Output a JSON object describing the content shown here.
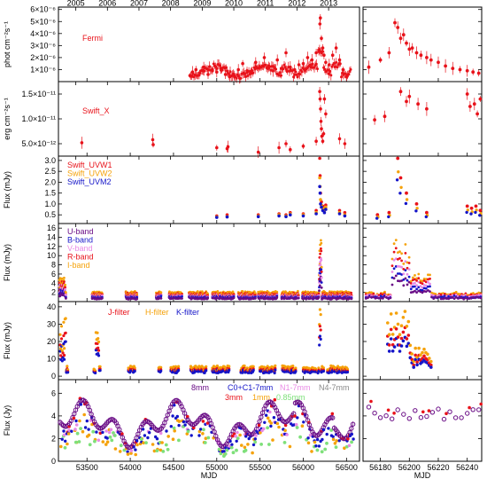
{
  "colors": {
    "red": "#e8121a",
    "orange": "#f5a20a",
    "blue": "#1414c8",
    "pink": "#e98ae6",
    "purple": "#6a0d86",
    "magenta": "#b0107a",
    "gray": "#8a8a8a",
    "green": "#7ee07a"
  },
  "top_axis": {
    "years": [
      "2005",
      "2006",
      "2007",
      "2008",
      "2009",
      "2010",
      "2011",
      "2012",
      "2013"
    ],
    "year_mjd": [
      53371,
      53736,
      54101,
      54466,
      54832,
      55197,
      55562,
      55927,
      56293
    ]
  },
  "bottom_axis": {
    "left_xlabel": "MJD",
    "right_xlabel": "MJD",
    "left_ticks": [
      "53500",
      "54000",
      "54500",
      "55000",
      "55500",
      "56000",
      "56500"
    ],
    "left_tick_values": [
      53500,
      54000,
      54500,
      55000,
      55500,
      56000,
      56500
    ],
    "right_ticks": [
      "56180",
      "56200",
      "56220",
      "56240"
    ],
    "right_tick_values": [
      56180,
      56200,
      56220,
      56240
    ],
    "left_xlim": [
      53170,
      56650
    ],
    "right_xlim": [
      56168,
      56250
    ]
  },
  "chart_data": [
    {
      "type": "scatter",
      "panel": "fermi",
      "ylabel": "phot cm⁻²s⁻¹",
      "yticks": [
        "1×10⁻⁶",
        "2×10⁻⁶",
        "3×10⁻⁶",
        "4×10⁻⁶",
        "5×10⁻⁶",
        "6×10⁻⁶"
      ],
      "ytick_values": [
        1e-06,
        2e-06,
        3e-06,
        4e-06,
        5e-06,
        6e-06
      ],
      "ylim": [
        0,
        6.2e-06
      ],
      "series": [
        {
          "name": "Fermi",
          "color": "red",
          "error_bars": true,
          "x": [
            54690,
            54720,
            54760,
            54800,
            54850,
            54900,
            54950,
            55000,
            55050,
            55100,
            55150,
            55200,
            55250,
            55300,
            55350,
            55400,
            55450,
            55500,
            55550,
            55600,
            55650,
            55700,
            55750,
            55800,
            55850,
            55900,
            55950,
            56000,
            56050,
            56100,
            56150,
            56180,
            56192,
            56198,
            56210,
            56225,
            56240,
            56260,
            56300,
            56340,
            56380,
            56420,
            56460,
            56500
          ],
          "y": [
            5e-07,
            8e-07,
            1e-06,
            7e-07,
            1.2e-06,
            6e-07,
            9e-07,
            8e-07,
            1.1e-06,
            6e-07,
            4e-07,
            5e-07,
            1e-06,
            1.5e-06,
            9e-07,
            7e-07,
            1.6e-06,
            1.2e-06,
            2e-06,
            1.3e-06,
            9e-07,
            1.8e-06,
            1.1e-06,
            2.4e-06,
            1.2e-06,
            1e-06,
            1.4e-06,
            1.5e-06,
            2e-06,
            1.8e-06,
            2.4e-06,
            2.5e-06,
            4.8e-06,
            5.3e-06,
            3.6e-06,
            2.8e-06,
            2.2e-06,
            1.6e-06,
            1.4e-06,
            2.2e-06,
            2.8e-06,
            1.8e-06,
            1e-06,
            4e-07
          ]
        }
      ],
      "zoom": {
        "x": [
          56172,
          56180,
          56186,
          56190,
          56192,
          56194,
          56196,
          56198,
          56200,
          56202,
          56205,
          56208,
          56212,
          56215,
          56220,
          56225,
          56230,
          56235,
          56240,
          56244,
          56248
        ],
        "y": [
          1.2e-06,
          1.8e-06,
          2.4e-06,
          4.9e-06,
          4.5e-06,
          3.6e-06,
          3.9e-06,
          3.2e-06,
          2.7e-06,
          2.8e-06,
          2.4e-06,
          2.2e-06,
          2e-06,
          1.8e-06,
          1.6e-06,
          1.3e-06,
          1.1e-06,
          1e-06,
          9e-07,
          8e-07,
          7e-07
        ]
      }
    },
    {
      "type": "scatter",
      "panel": "swift_x",
      "ylabel": "erg cm⁻²s⁻¹",
      "yticks": [
        "5.0×10⁻¹²",
        "1.0×10⁻¹¹",
        "1.5×10⁻¹¹"
      ],
      "ytick_values": [
        5e-12,
        1e-11,
        1.5e-11
      ],
      "ylim": [
        2.5e-12,
        1.75e-11
      ],
      "series": [
        {
          "name": "Swift_X",
          "color": "red",
          "error_bars": true,
          "x": [
            53440,
            54260,
            54265,
            55000,
            55120,
            55130,
            55480,
            55720,
            55800,
            55850,
            56000,
            56150,
            56190,
            56195,
            56200,
            56205,
            56210,
            56215,
            56225,
            56235,
            56245,
            56260,
            56420,
            56480
          ],
          "y": [
            5.2e-12,
            5.8e-12,
            4.8e-12,
            4.2e-12,
            4e-12,
            4.4e-12,
            3.3e-12,
            4.2e-12,
            5e-12,
            3.8e-12,
            4.5e-12,
            5.5e-12,
            1.55e-11,
            1.4e-11,
            1.2e-11,
            9.5e-12,
            8e-12,
            6.5e-12,
            5.5e-12,
            7e-12,
            1.4e-11,
            1.1e-11,
            6e-12,
            5e-12
          ]
        }
      ],
      "zoom": {
        "x": [
          56176,
          56183,
          56194,
          56198,
          56200,
          56206,
          56212,
          56240,
          56242,
          56245,
          56247,
          56249
        ],
        "y": [
          9.8e-12,
          1.05e-11,
          1.55e-11,
          1.35e-11,
          1.45e-11,
          1.3e-11,
          1.2e-11,
          1.5e-11,
          1.25e-11,
          1.3e-11,
          1.1e-11,
          1.4e-11
        ]
      }
    },
    {
      "type": "scatter",
      "panel": "swift_uv",
      "ylabel": "Flux (mJy)",
      "yticks": [
        "0.5",
        "1.0",
        "1.5",
        "2.0",
        "2.5",
        "3.0"
      ],
      "ytick_values": [
        0.5,
        1.0,
        1.5,
        2.0,
        2.5,
        3.0
      ],
      "ylim": [
        0.1,
        3.2
      ],
      "series": [
        {
          "name": "Swift_UVW1",
          "color": "red",
          "x": [
            55000,
            55120,
            55480,
            55720,
            55800,
            55850,
            56000,
            56150,
            56190,
            56195,
            56200,
            56210,
            56225,
            56245,
            56260,
            56420,
            56480
          ],
          "y": [
            0.45,
            0.5,
            0.5,
            0.55,
            0.5,
            0.6,
            0.55,
            0.7,
            3.1,
            2.3,
            1.5,
            1.1,
            0.9,
            0.8,
            0.95,
            0.7,
            0.6
          ]
        },
        {
          "name": "Swift_UVW2",
          "color": "orange",
          "x": [
            55000,
            55120,
            55480,
            55720,
            55800,
            55850,
            56000,
            56150,
            56190,
            56195,
            56200,
            56210,
            56225,
            56245,
            56260,
            56420,
            56480
          ],
          "y": [
            0.4,
            0.42,
            0.45,
            0.5,
            0.45,
            0.55,
            0.5,
            0.6,
            2.2,
            1.8,
            1.2,
            0.95,
            0.8,
            0.7,
            0.85,
            0.6,
            0.5
          ]
        },
        {
          "name": "Swift_UVM2",
          "color": "blue",
          "x": [
            55000,
            55120,
            55480,
            55720,
            55800,
            55850,
            56000,
            56150,
            56190,
            56195,
            56200,
            56210,
            56225,
            56245,
            56260,
            56420,
            56480
          ],
          "y": [
            0.38,
            0.4,
            0.42,
            0.45,
            0.42,
            0.5,
            0.45,
            0.55,
            1.8,
            1.5,
            1.0,
            0.85,
            0.7,
            0.6,
            0.75,
            0.55,
            0.45
          ]
        }
      ],
      "zoom": {
        "x": [
          56178,
          56186,
          56192,
          56194,
          56198,
          56205,
          56212,
          56240,
          56243,
          56246,
          56249
        ],
        "y": [
          0.5,
          0.6,
          3.1,
          2.2,
          1.5,
          1.0,
          0.6,
          0.9,
          0.8,
          0.9,
          0.7
        ]
      }
    },
    {
      "type": "scatter",
      "panel": "optical",
      "ylabel": "Flux (mJy)",
      "yticks": [
        "2",
        "4",
        "6",
        "8",
        "10",
        "12",
        "14",
        "16"
      ],
      "ytick_values": [
        2,
        4,
        6,
        8,
        10,
        12,
        14,
        16
      ],
      "ylim": [
        0,
        17
      ],
      "series": [
        {
          "name": "U-band",
          "color": "purple"
        },
        {
          "name": "B-band",
          "color": "blue"
        },
        {
          "name": "V-band",
          "color": "pink"
        },
        {
          "name": "R-band",
          "color": "red"
        },
        {
          "name": "I-band",
          "color": "orange"
        }
      ]
    },
    {
      "type": "scatter",
      "panel": "nir",
      "ylabel": "Flux (mJy)",
      "yticks": [
        "0",
        "10",
        "20",
        "30",
        "40"
      ],
      "ytick_values": [
        0,
        10,
        20,
        30,
        40
      ],
      "ylim": [
        -2,
        43
      ],
      "series": [
        {
          "name": "J-filter",
          "color": "red"
        },
        {
          "name": "H-filter",
          "color": "orange"
        },
        {
          "name": "K-filter",
          "color": "blue"
        }
      ]
    },
    {
      "type": "scatter",
      "panel": "radio",
      "ylabel": "Flux (Jy)",
      "yticks": [
        "0",
        "2",
        "4",
        "6"
      ],
      "ytick_values": [
        0,
        2,
        4,
        6
      ],
      "ylim": [
        0,
        7.2
      ],
      "series": [
        {
          "name": "8mm",
          "color": "purple"
        },
        {
          "name": "C0+C1-7mm",
          "color": "blue"
        },
        {
          "name": "N1-7mm",
          "color": "pink"
        },
        {
          "name": "N4-7mm",
          "color": "gray"
        },
        {
          "name": "3mm",
          "color": "red"
        },
        {
          "name": "1mm",
          "color": "orange"
        },
        {
          "name": "0.85mm",
          "color": "green"
        }
      ]
    }
  ]
}
